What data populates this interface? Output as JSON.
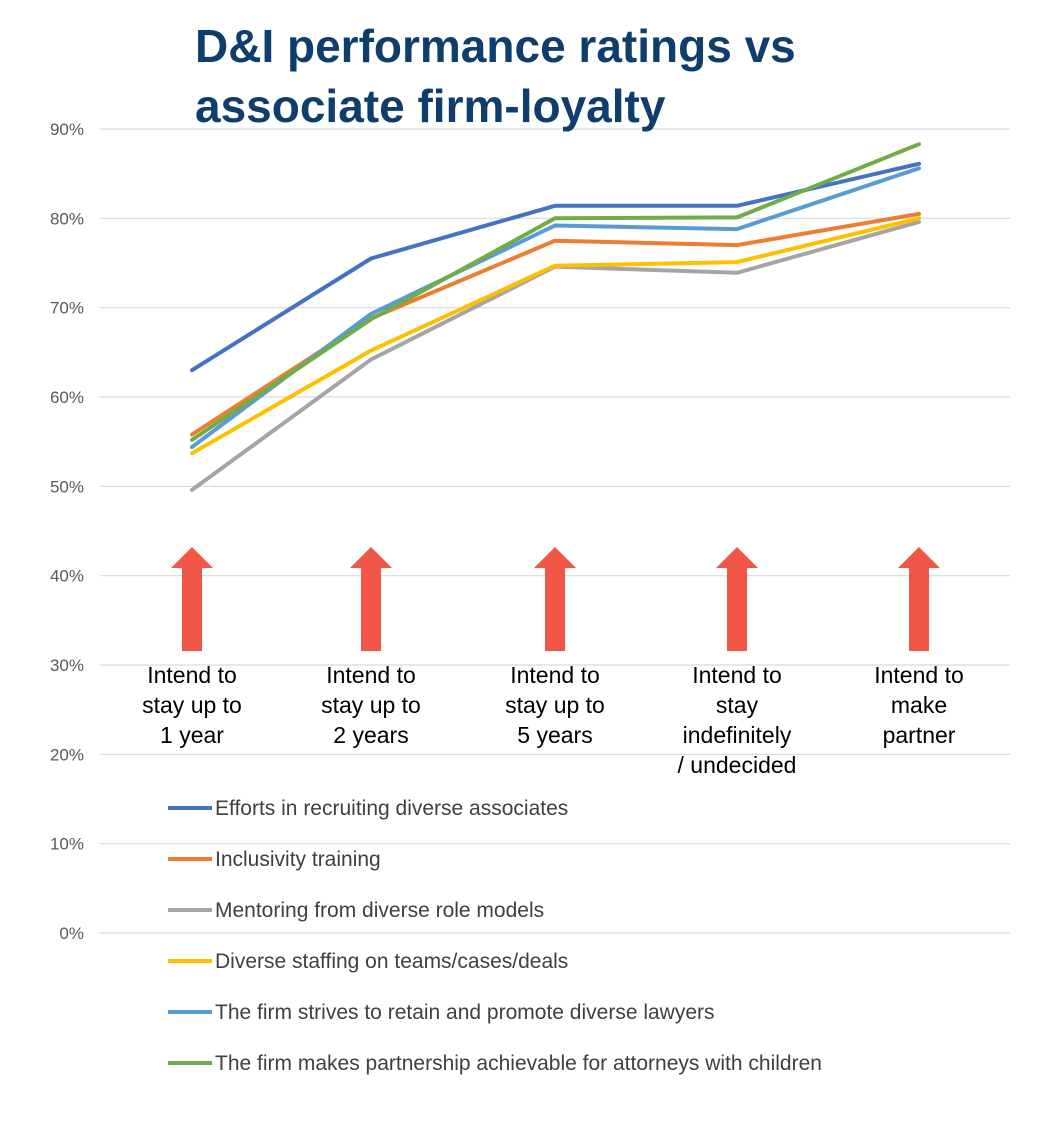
{
  "chart_data": {
    "type": "line",
    "title_lines": [
      "D&I performance ratings vs",
      "associate firm-loyalty"
    ],
    "categories": [
      [
        "Intend to",
        "stay up to",
        "1 year"
      ],
      [
        "Intend to",
        "stay up to",
        "2 years"
      ],
      [
        "Intend to",
        "stay up to",
        "5 years"
      ],
      [
        "Intend to",
        "stay",
        "indefinitely",
        "/ undecided"
      ],
      [
        "Intend to",
        "make",
        "partner"
      ]
    ],
    "yticks": [
      "0%",
      "10%",
      "20%",
      "30%",
      "40%",
      "50%",
      "60%",
      "70%",
      "80%",
      "90%"
    ],
    "ylim": [
      0,
      90
    ],
    "grid": true,
    "series": [
      {
        "name": "Efforts in recruiting diverse associates",
        "color": "#4472c4",
        "values": [
          63,
          75.5,
          81.4,
          81.4,
          86.1
        ]
      },
      {
        "name": "Inclusivity training",
        "color": "#ed7d31",
        "values": [
          55.8,
          68.8,
          77.5,
          77,
          80.5
        ]
      },
      {
        "name": "Mentoring from diverse role models",
        "color": "#a5a5a5",
        "values": [
          49.6,
          64.2,
          74.6,
          73.9,
          79.6
        ]
      },
      {
        "name": "Diverse staffing on teams/cases/deals",
        "color": "#ffc000",
        "values": [
          53.7,
          65.2,
          74.7,
          75.1,
          80
        ]
      },
      {
        "name": "The firm strives to retain and promote diverse lawyers",
        "color": "#5b9bd5",
        "values": [
          54.4,
          69.3,
          79.2,
          78.8,
          85.6
        ]
      },
      {
        "name": "The firm makes partnership achievable for attorneys with children",
        "color": "#70ad47",
        "values": [
          55.2,
          68.7,
          80,
          80.1,
          88.3
        ]
      }
    ],
    "arrow_color": "#f05545"
  }
}
